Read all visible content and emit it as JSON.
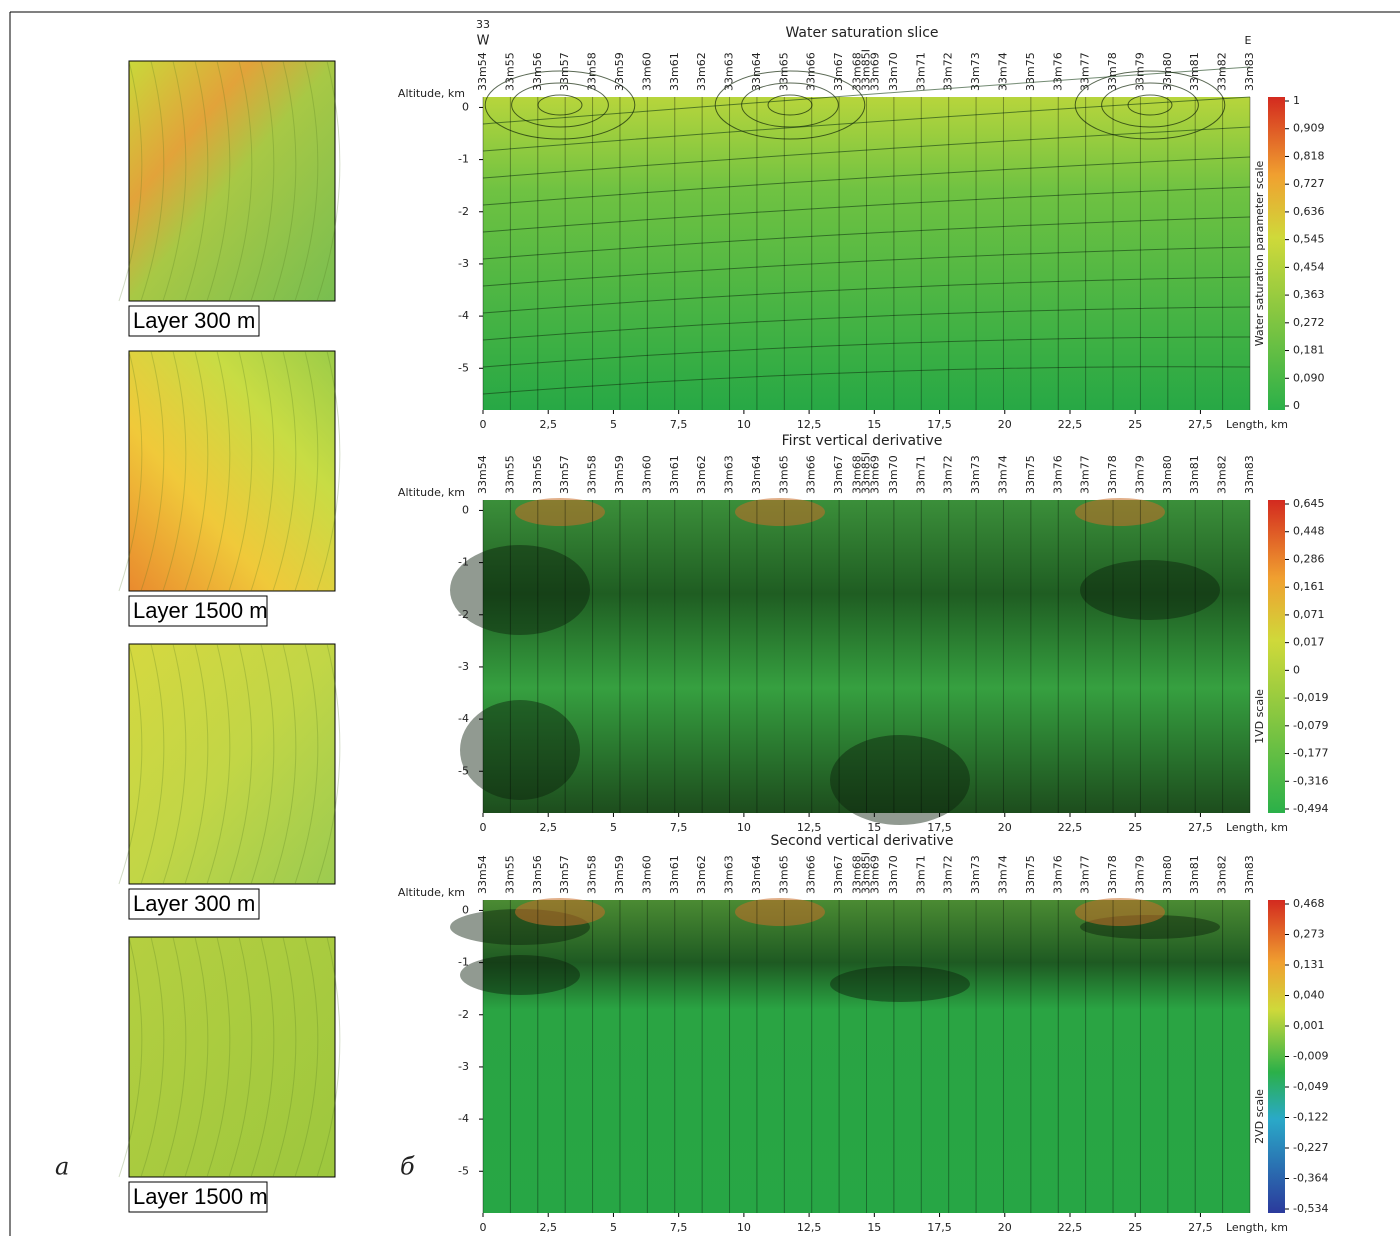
{
  "left": {
    "label": "a",
    "maps": [
      {
        "caption": "Layer 300 m"
      },
      {
        "caption": "Layer 1500 m"
      },
      {
        "caption": "Layer 300 m"
      },
      {
        "caption": "Layer 1500 m"
      }
    ]
  },
  "right": {
    "label": "б",
    "top_left": [
      "33",
      "W"
    ],
    "top_right": "E",
    "wells": [
      [
        "33m54"
      ],
      [
        "33m55"
      ],
      [
        "33m56"
      ],
      [
        "33m57"
      ],
      [
        "33m58"
      ],
      [
        "33m59"
      ],
      [
        "33m60"
      ],
      [
        "33m61"
      ],
      [
        "33m62"
      ],
      [
        "33m63"
      ],
      [
        "33m64"
      ],
      [
        "33m65"
      ],
      [
        "33m66"
      ],
      [
        "33m67"
      ],
      [
        "33m68",
        "33m85I",
        "33m69"
      ],
      [
        "33m70"
      ],
      [
        "33m71"
      ],
      [
        "33m72"
      ],
      [
        "33m73"
      ],
      [
        "33m74"
      ],
      [
        "33m75"
      ],
      [
        "33m76"
      ],
      [
        "33m77"
      ],
      [
        "33m78"
      ],
      [
        "33m79"
      ],
      [
        "33m80"
      ],
      [
        "33m81"
      ],
      [
        "33m82"
      ],
      [
        "33m83"
      ]
    ],
    "x_axis": {
      "label": "Length, km",
      "lim": [
        0,
        29.4
      ],
      "ticks": [
        0,
        {
          "value": 2.5,
          "label": "2,5"
        },
        5,
        {
          "value": 7.5,
          "label": "7,5"
        },
        10,
        {
          "value": 12.5,
          "label": "12,5"
        },
        15,
        {
          "value": 17.5,
          "label": "17,5"
        },
        20,
        {
          "value": 22.5,
          "label": "22,5"
        },
        25,
        {
          "value": 27.5,
          "label": "27,5"
        }
      ]
    },
    "y_axis": {
      "label": "Altitude, km",
      "lim": [
        -5.8,
        0.2
      ],
      "ticks": [
        0,
        -1,
        -2,
        -3,
        -4,
        -5
      ]
    },
    "panels": [
      {
        "title": "Water saturation slice",
        "scale_label": "Water saturation parameter scale",
        "scale_ticks": [
          1,
          {
            "value": 0.909,
            "label": "0,909"
          },
          {
            "value": 0.818,
            "label": "0,818"
          },
          {
            "value": 0.727,
            "label": "0,727"
          },
          {
            "value": 0.636,
            "label": "0,636"
          },
          {
            "value": 0.545,
            "label": "0,545"
          },
          {
            "value": 0.454,
            "label": "0,454"
          },
          {
            "value": 0.363,
            "label": "0,363"
          },
          {
            "value": 0.272,
            "label": "0,272"
          },
          {
            "value": 0.181,
            "label": "0,181"
          },
          {
            "value": 0.09,
            "label": "0,090"
          },
          0
        ]
      },
      {
        "title": "First vertical derivative",
        "scale_label": "1VD scale",
        "scale_ticks": [
          {
            "value": 0.645,
            "label": "0,645"
          },
          {
            "value": 0.448,
            "label": "0,448"
          },
          {
            "value": 0.286,
            "label": "0,286"
          },
          {
            "value": 0.161,
            "label": "0,161"
          },
          {
            "value": 0.071,
            "label": "0,071"
          },
          {
            "value": 0.017,
            "label": "0,017"
          },
          0,
          {
            "value": -0.019,
            "label": "-0,019"
          },
          {
            "value": -0.079,
            "label": "-0,079"
          },
          {
            "value": -0.177,
            "label": "-0,177"
          },
          {
            "value": -0.316,
            "label": "-0,316"
          },
          {
            "value": -0.494,
            "label": "-0,494"
          }
        ]
      },
      {
        "title": "Second vertical derivative",
        "scale_label": "2VD scale",
        "scale_ticks": [
          {
            "value": 0.468,
            "label": "0,468"
          },
          {
            "value": 0.273,
            "label": "0,273"
          },
          {
            "value": 0.131,
            "label": "0,131"
          },
          {
            "value": 0.04,
            "label": "0,040"
          },
          {
            "value": 0.001,
            "label": "0,001"
          },
          {
            "value": -0.009,
            "label": "-0,009"
          },
          {
            "value": -0.049,
            "label": "-0,049"
          },
          {
            "value": -0.122,
            "label": "-0,122"
          },
          {
            "value": -0.227,
            "label": "-0,227"
          },
          {
            "value": -0.364,
            "label": "-0,364"
          },
          {
            "value": -0.534,
            "label": "-0,534"
          }
        ]
      }
    ]
  }
}
